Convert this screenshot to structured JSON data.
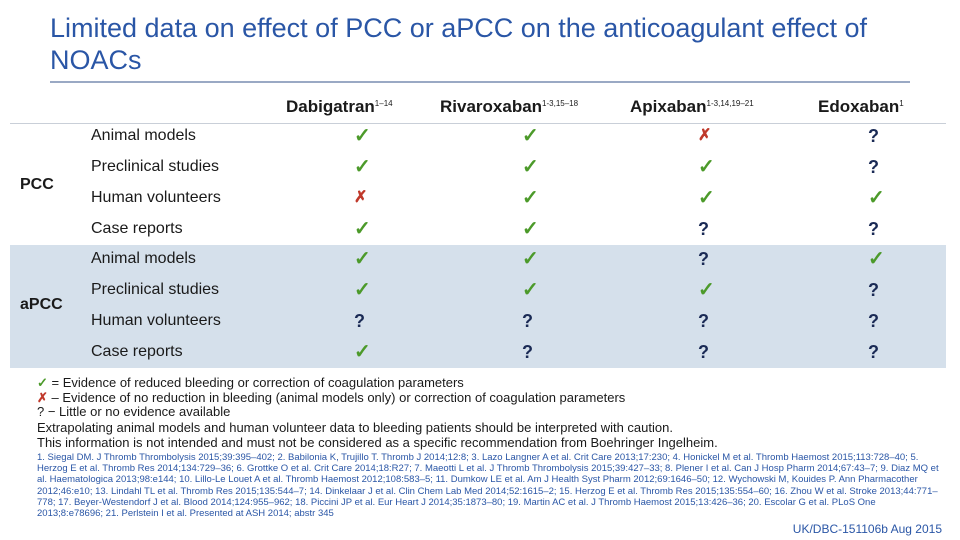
{
  "title": "Limited data on effect of PCC or aPCC on the anticoagulant effect of NOACs",
  "table": {
    "columns": [
      {
        "name": "Dabigatran",
        "sup": "1–14"
      },
      {
        "name": "Rivaroxaban",
        "sup": "1-3,15–18"
      },
      {
        "name": "Apixaban",
        "sup": "1-3,14,19–21"
      },
      {
        "name": "Edoxaban",
        "sup": "1"
      }
    ],
    "groups": [
      {
        "label": "PCC",
        "rows": [
          {
            "label": "Animal models",
            "values": [
              "check",
              "check",
              "cross",
              "question"
            ]
          },
          {
            "label": "Preclinical studies",
            "values": [
              "check",
              "check",
              "check",
              "question"
            ]
          },
          {
            "label": "Human volunteers",
            "values": [
              "cross",
              "check",
              "check",
              "check"
            ]
          },
          {
            "label": "Case reports",
            "values": [
              "check",
              "check",
              "question",
              "question"
            ]
          }
        ]
      },
      {
        "label": "aPCC",
        "rows": [
          {
            "label": "Animal models",
            "values": [
              "check",
              "check",
              "question",
              "check"
            ]
          },
          {
            "label": "Preclinical studies",
            "values": [
              "check",
              "check",
              "check",
              "question"
            ]
          },
          {
            "label": "Human volunteers",
            "values": [
              "question",
              "question",
              "question",
              "question"
            ]
          },
          {
            "label": "Case reports",
            "values": [
              "check",
              "question",
              "question",
              "question"
            ]
          }
        ]
      }
    ],
    "symbols": {
      "check": "✓",
      "cross": "✗",
      "question": "?"
    }
  },
  "legend": {
    "check_text": " = Evidence of reduced bleeding or correction of coagulation parameters",
    "cross_text": " – Evidence of no reduction in bleeding (animal models only) or correction of coagulation parameters",
    "question_text": "? − Little or no evidence available"
  },
  "notes": {
    "line1": "Extrapolating animal models and human volunteer data to bleeding patients should be interpreted with caution.",
    "line2": "This information is not intended and must not be considered as a specific recommendation from Boehringer Ingelheim."
  },
  "references": "1. Siegal DM. J Thromb Thrombolysis 2015;39:395‒402; 2. Babilonia K, Trujillo T. Thromb J 2014;12:8; 3. Lazo Langner A et al. Crit Care 2013;17:230; 4. Honickel M et al. Thromb Haemost 2015;113:728‒40; 5. Herzog E et al. Thromb Res 2014;134:729‒36; 6. Grottke O et al. Crit Care 2014;18:R27; 7. Maeotti L et al. J Thromb Thrombolysis 2015;39:427–33; 8. Plener I et al. Can J Hosp Pharm 2014;67:43–7; 9. Diaz MQ et al. Haematologica 2013;98:e144; 10. Lillo-Le Louet A et al. Thromb Haemost 2012;108:583–5; 11. Dumkow LE et al. Am J Health Syst Pharm 2012;69:1646–50; 12. Wychowski M, Kouides P. Ann Pharmacother 2012;46:e10; 13. Lindahl TL et al. Thromb Res 2015;135:544–7; 14. Dinkelaar J et al. Clin Chem Lab Med 2014;52:1615–2; 15. Herzog E et al. Thromb Res 2015;135:554–60; 16. Zhou W et al. Stroke 2013;44:771–778; 17. Beyer-Westendorf J et al. Blood 2014;124:955–962; 18. Piccini JP et al. Eur Heart J 2014;35:1873–80; 19. Martin AC et al. J Thromb Haemost 2015;13:426–36; 20. Escolar G et al. PLoS One 2013;8:e78696; 21. Perlstein I et al. Presented at ASH 2014; abstr 345",
  "footer_code": "UK/DBC-151106b Aug 2015",
  "colors": {
    "title": "#2a56a6",
    "check": "#4c9a2a",
    "cross": "#c0392b",
    "band": "#d5e0eb"
  }
}
